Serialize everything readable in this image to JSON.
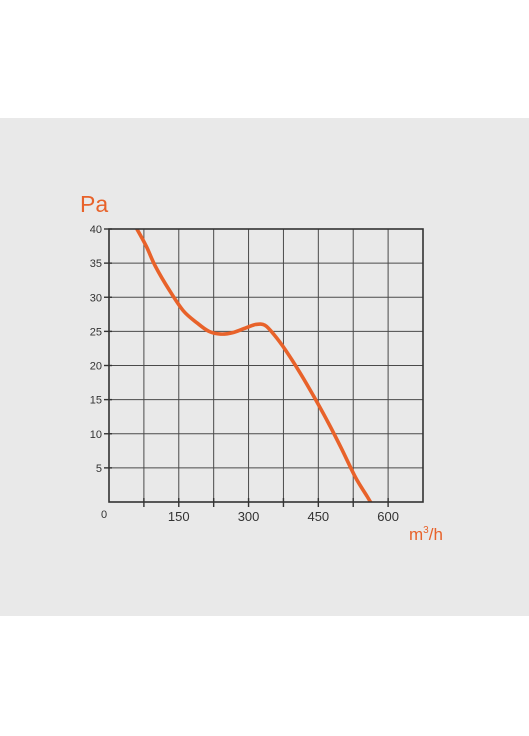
{
  "chart_data": {
    "type": "line",
    "ylabel": "Pa",
    "xlabel_base": "m",
    "xlabel_sup": "3",
    "xlabel_suffix": "/h",
    "origin_label": "0",
    "xlim": [
      0,
      675
    ],
    "ylim": [
      0,
      40
    ],
    "xticks": [
      150,
      300,
      450,
      600
    ],
    "xtick_labels": [
      "150",
      "300",
      "450",
      "600"
    ],
    "yticks": [
      5,
      10,
      15,
      20,
      25,
      30,
      35,
      40
    ],
    "ytick_labels": [
      "5",
      "10",
      "15",
      "20",
      "25",
      "30",
      "35",
      "40"
    ],
    "grid": true,
    "series": [
      {
        "color": "#e8622a",
        "x": [
          60,
          80,
          100,
          130,
          160,
          190,
          215,
          240,
          265,
          290,
          315,
          335,
          355,
          380,
          410,
          440,
          470,
          500,
          530,
          555,
          575
        ],
        "y": [
          40,
          37.5,
          34.5,
          31,
          28,
          26.2,
          25,
          24.6,
          24.8,
          25.4,
          26,
          25.9,
          24.5,
          22.2,
          19,
          15.5,
          11.8,
          7.8,
          3.6,
          0.8,
          -1.5
        ]
      }
    ]
  },
  "colors": {
    "accent": "#e8622a",
    "grid": "#4a4a4a",
    "panel": "#e9e9e9"
  }
}
